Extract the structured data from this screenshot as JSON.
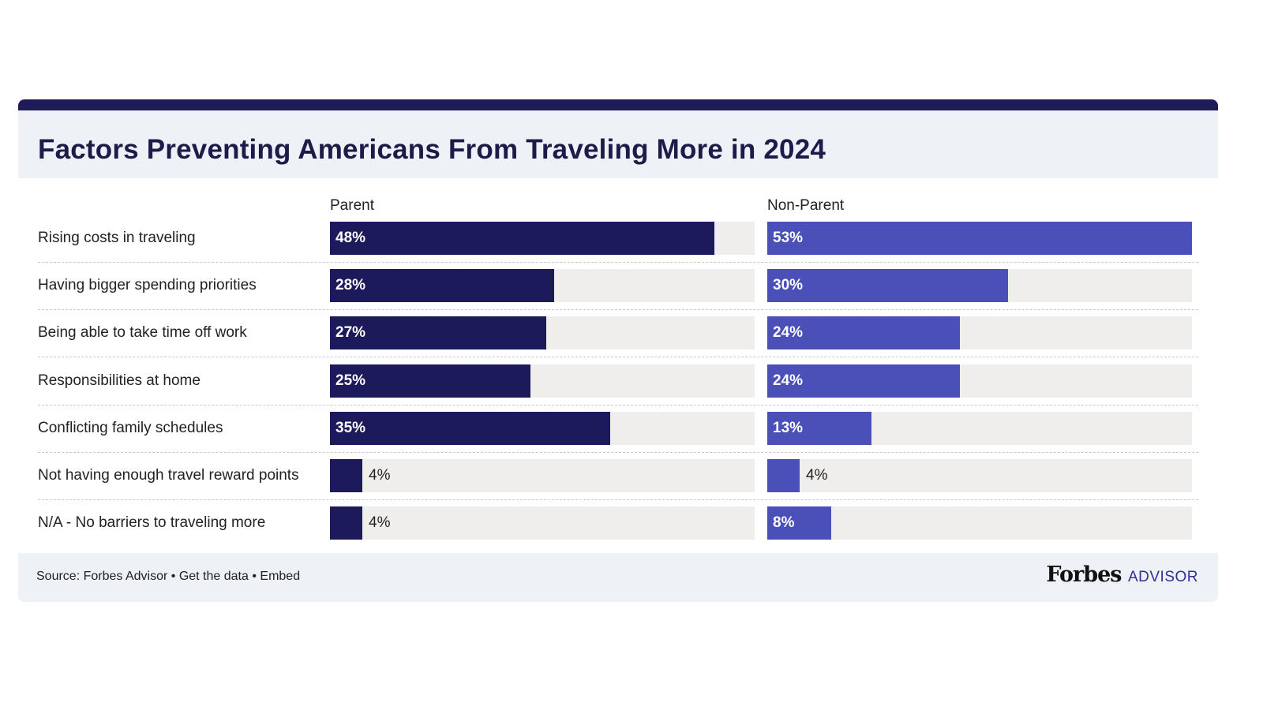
{
  "chart_data": {
    "type": "bar",
    "orientation": "horizontal",
    "title": "Factors Preventing Americans From Traveling More in 2024",
    "categories": [
      "Rising costs in traveling",
      "Having bigger spending priorities",
      "Being able to take time off work",
      "Responsibilities at home",
      "Conflicting family schedules",
      "Not having enough travel reward points",
      "N/A - No barriers to traveling more"
    ],
    "series": [
      {
        "name": "Parent",
        "color": "#1c1a5a",
        "values": [
          48,
          28,
          27,
          25,
          35,
          4,
          4
        ],
        "labels": [
          "48%",
          "28%",
          "27%",
          "25%",
          "35%",
          "4%",
          "4%"
        ]
      },
      {
        "name": "Non-Parent",
        "color": "#4b4fb8",
        "values": [
          53,
          30,
          24,
          24,
          13,
          4,
          8
        ],
        "labels": [
          "53%",
          "30%",
          "24%",
          "24%",
          "13%",
          "4%",
          "8%"
        ]
      }
    ],
    "xlim": [
      0,
      53
    ],
    "unit": "%"
  },
  "footer": {
    "source": "Source: Forbes Advisor",
    "separator": "•",
    "get_data": "Get the data",
    "embed": "Embed"
  },
  "brand": {
    "name": "Forbes",
    "suffix": "ADVISOR"
  }
}
